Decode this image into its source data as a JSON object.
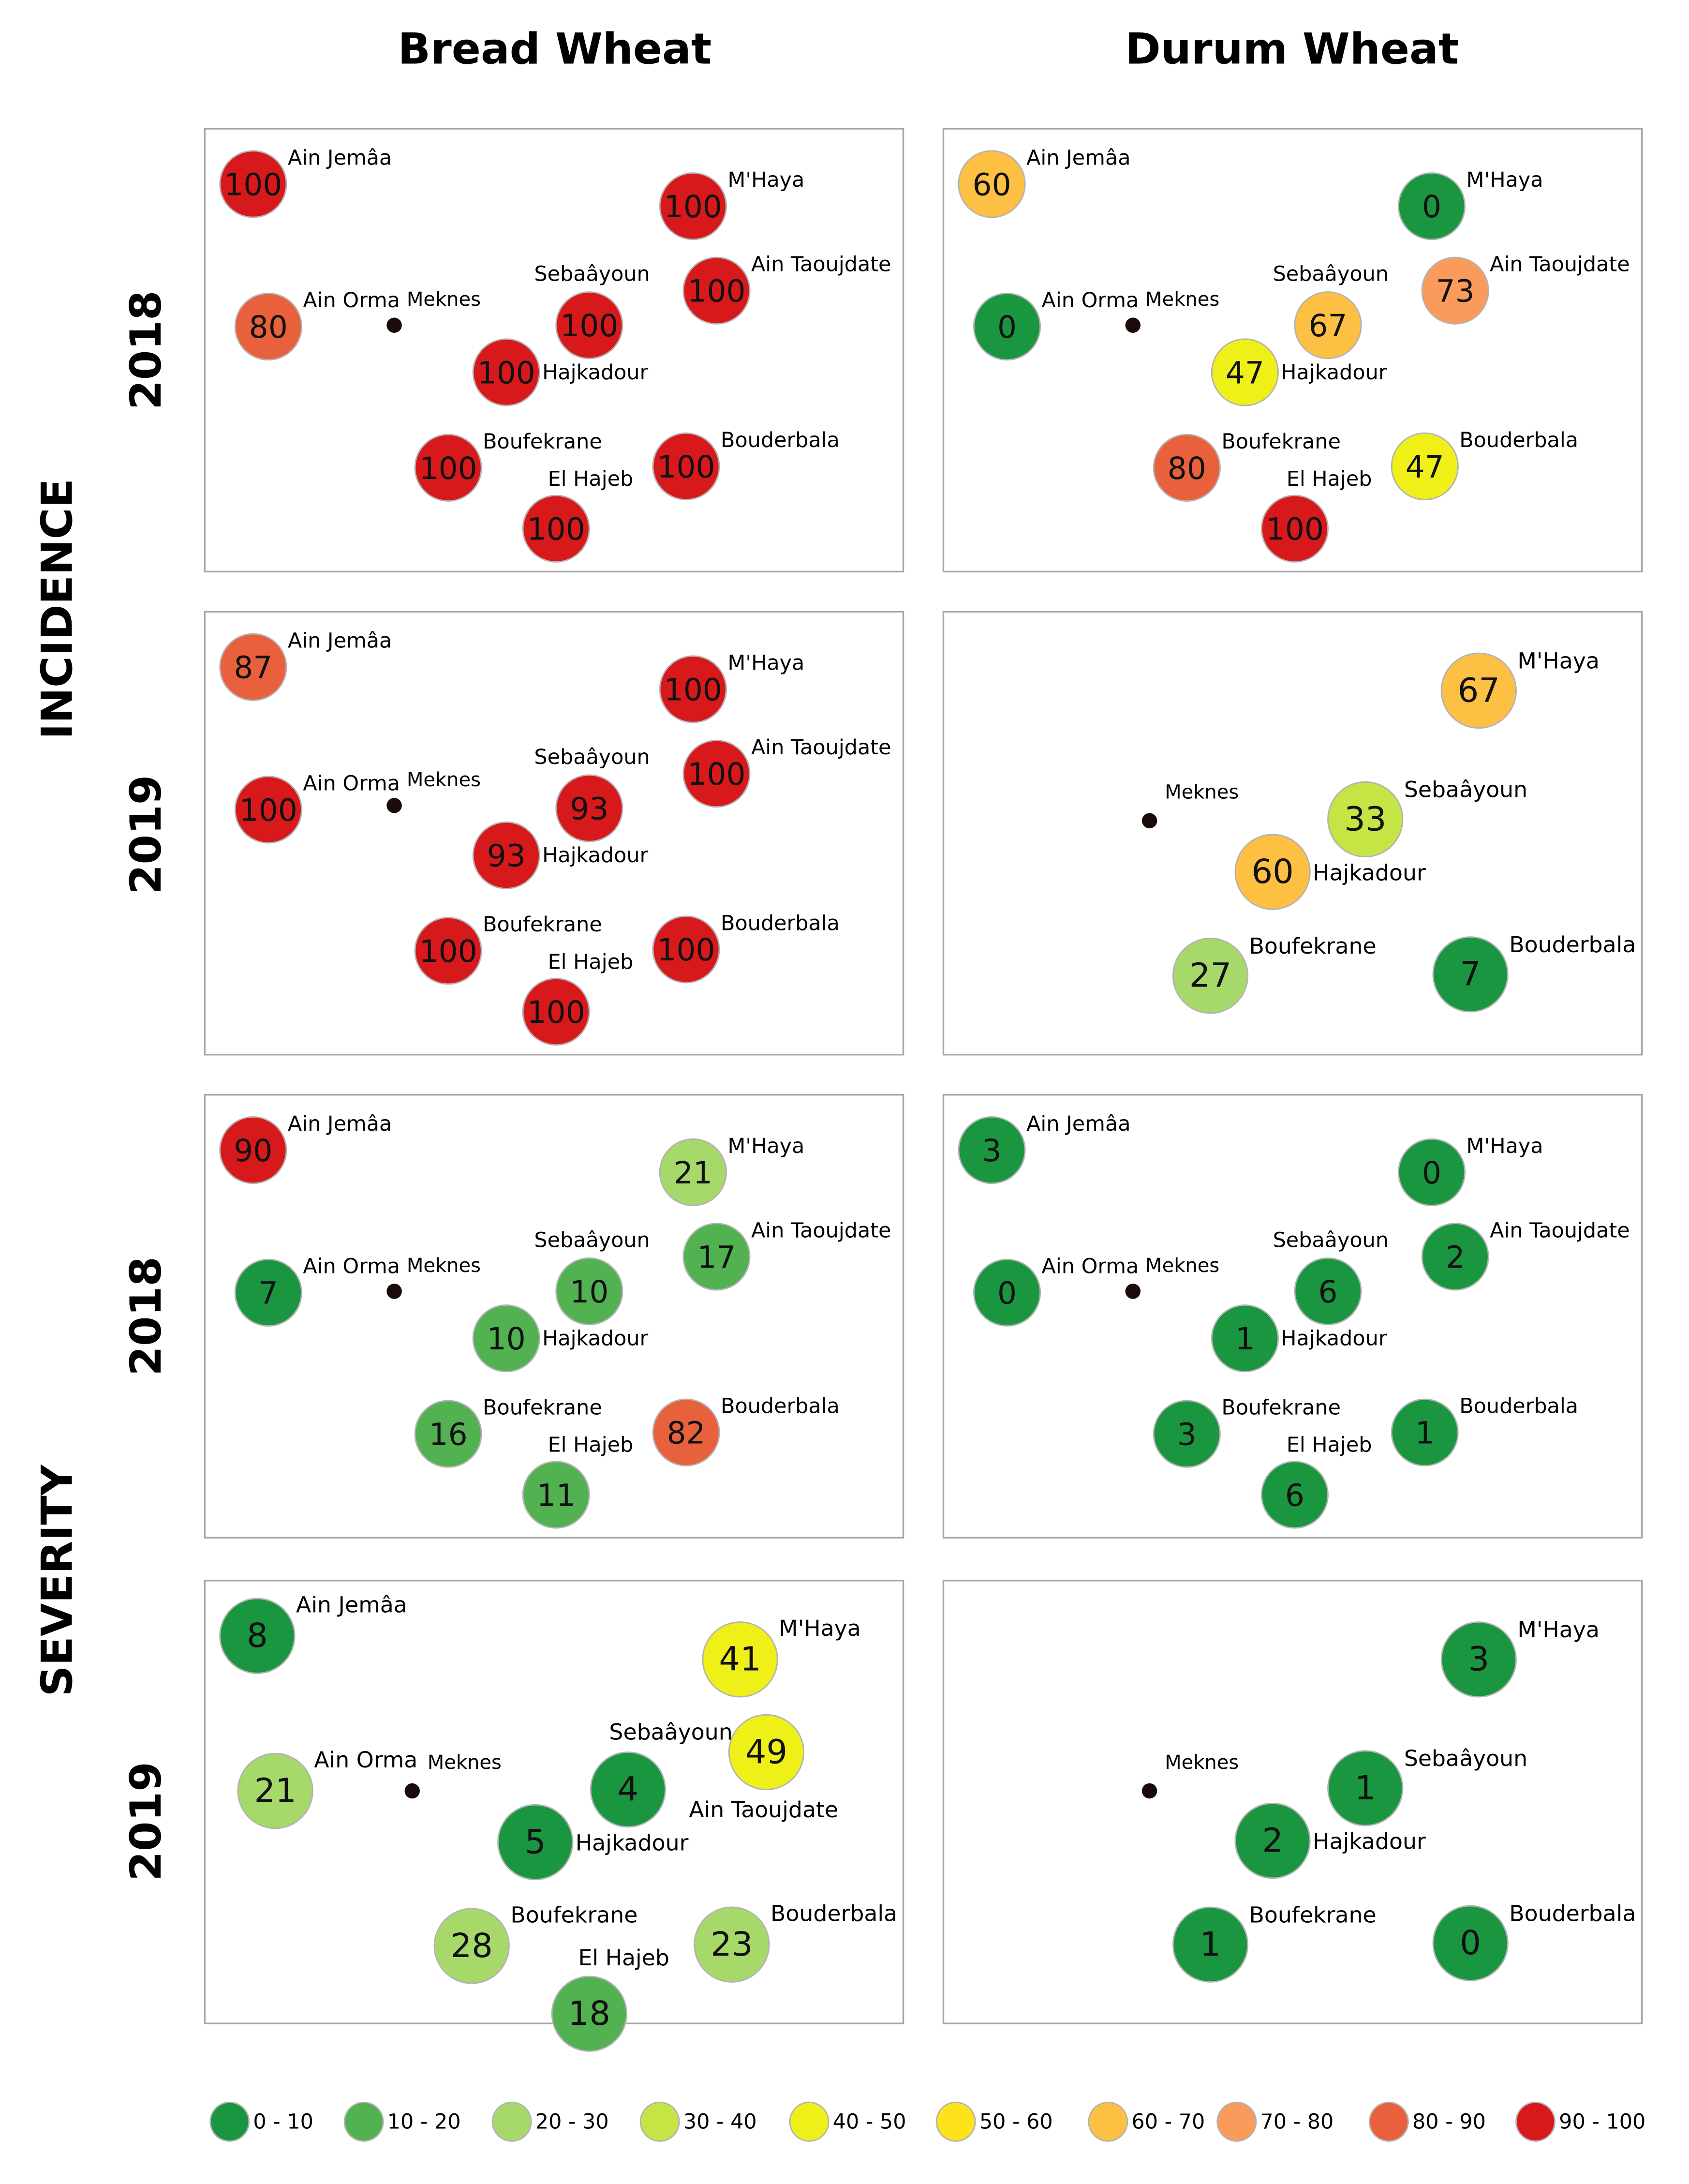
{
  "columns": [
    "Bread Wheat",
    "Durum Wheat"
  ],
  "row_groups": [
    "INCIDENCE",
    "SEVERITY"
  ],
  "years": [
    "2018",
    "2019",
    "2018",
    "2019"
  ],
  "city": "Meknes",
  "legend": [
    {
      "label": "0 - 10",
      "color": "#1a9641"
    },
    {
      "label": "10 - 20",
      "color": "#52b151"
    },
    {
      "label": "20 - 30",
      "color": "#a6d96a"
    },
    {
      "label": "30 - 40",
      "color": "#c4e544"
    },
    {
      "label": "40 - 50",
      "color": "#f0f019"
    },
    {
      "label": "50 - 60",
      "color": "#ffe31a"
    },
    {
      "label": "60 - 70",
      "color": "#fdc042"
    },
    {
      "label": "70 - 80",
      "color": "#fb9b5b"
    },
    {
      "label": "80 - 90",
      "color": "#e8613c"
    },
    {
      "label": "90 - 100",
      "color": "#d7191c"
    }
  ],
  "panels": [
    {
      "group": "INCIDENCE",
      "year": "2018",
      "crop": "Bread Wheat",
      "sites": [
        {
          "name": "Ain Jemâa",
          "value": 100
        },
        {
          "name": "M'Haya",
          "value": 100
        },
        {
          "name": "Ain Taoujdate",
          "value": 100
        },
        {
          "name": "Sebaâyoun",
          "value": 100
        },
        {
          "name": "Ain Orma",
          "value": 80
        },
        {
          "name": "Hajkadour",
          "value": 100
        },
        {
          "name": "Boufekrane",
          "value": 100
        },
        {
          "name": "Bouderbala",
          "value": 100
        },
        {
          "name": "El Hajeb",
          "value": 100
        }
      ]
    },
    {
      "group": "INCIDENCE",
      "year": "2018",
      "crop": "Durum Wheat",
      "sites": [
        {
          "name": "Ain Jemâa",
          "value": 60
        },
        {
          "name": "M'Haya",
          "value": 0
        },
        {
          "name": "Ain Taoujdate",
          "value": 73
        },
        {
          "name": "Sebaâyoun",
          "value": 67
        },
        {
          "name": "Ain Orma",
          "value": 0
        },
        {
          "name": "Hajkadour",
          "value": 47
        },
        {
          "name": "Boufekrane",
          "value": 80
        },
        {
          "name": "Bouderbala",
          "value": 47
        },
        {
          "name": "El Hajeb",
          "value": 100
        }
      ]
    },
    {
      "group": "INCIDENCE",
      "year": "2019",
      "crop": "Bread Wheat",
      "sites": [
        {
          "name": "Ain Jemâa",
          "value": 87
        },
        {
          "name": "M'Haya",
          "value": 100
        },
        {
          "name": "Ain Taoujdate",
          "value": 100
        },
        {
          "name": "Sebaâyoun",
          "value": 93
        },
        {
          "name": "Ain Orma",
          "value": 100
        },
        {
          "name": "Hajkadour",
          "value": 93
        },
        {
          "name": "Boufekrane",
          "value": 100
        },
        {
          "name": "Bouderbala",
          "value": 100
        },
        {
          "name": "El Hajeb",
          "value": 100
        }
      ]
    },
    {
      "group": "INCIDENCE",
      "year": "2019",
      "crop": "Durum Wheat",
      "sites": [
        {
          "name": "M'Haya",
          "value": 67
        },
        {
          "name": "Sebaâyoun",
          "value": 33
        },
        {
          "name": "Hajkadour",
          "value": 60
        },
        {
          "name": "Boufekrane",
          "value": 27
        },
        {
          "name": "Bouderbala",
          "value": 7
        }
      ]
    },
    {
      "group": "SEVERITY",
      "year": "2018",
      "crop": "Bread Wheat",
      "sites": [
        {
          "name": "Ain Jemâa",
          "value": 90
        },
        {
          "name": "M'Haya",
          "value": 21
        },
        {
          "name": "Ain Taoujdate",
          "value": 17
        },
        {
          "name": "Sebaâyoun",
          "value": 10
        },
        {
          "name": "Ain Orma",
          "value": 7
        },
        {
          "name": "Hajkadour",
          "value": 10
        },
        {
          "name": "Boufekrane",
          "value": 16
        },
        {
          "name": "Bouderbala",
          "value": 82
        },
        {
          "name": "El Hajeb",
          "value": 11
        }
      ]
    },
    {
      "group": "SEVERITY",
      "year": "2018",
      "crop": "Durum Wheat",
      "sites": [
        {
          "name": "Ain Jemâa",
          "value": 3
        },
        {
          "name": "M'Haya",
          "value": 0
        },
        {
          "name": "Ain Taoujdate",
          "value": 2
        },
        {
          "name": "Sebaâyoun",
          "value": 6
        },
        {
          "name": "Ain Orma",
          "value": 0
        },
        {
          "name": "Hajkadour",
          "value": 1
        },
        {
          "name": "Boufekrane",
          "value": 3
        },
        {
          "name": "Bouderbala",
          "value": 1
        },
        {
          "name": "El Hajeb",
          "value": 6
        }
      ]
    },
    {
      "group": "SEVERITY",
      "year": "2019",
      "crop": "Bread Wheat",
      "sites": [
        {
          "name": "Ain Jemâa",
          "value": 8
        },
        {
          "name": "M'Haya",
          "value": 41
        },
        {
          "name": "Ain Taoujdate",
          "value": 49
        },
        {
          "name": "Sebaâyoun",
          "value": 4
        },
        {
          "name": "Ain Orma",
          "value": 21
        },
        {
          "name": "Hajkadour",
          "value": 5
        },
        {
          "name": "Boufekrane",
          "value": 28
        },
        {
          "name": "Bouderbala",
          "value": 23
        },
        {
          "name": "El Hajeb",
          "value": 18
        }
      ]
    },
    {
      "group": "SEVERITY",
      "year": "2019",
      "crop": "Durum Wheat",
      "sites": [
        {
          "name": "M'Haya",
          "value": 3
        },
        {
          "name": "Sebaâyoun",
          "value": 1
        },
        {
          "name": "Hajkadour",
          "value": 2
        },
        {
          "name": "Boufekrane",
          "value": 1
        },
        {
          "name": "Bouderbala",
          "value": 0
        }
      ]
    }
  ]
}
